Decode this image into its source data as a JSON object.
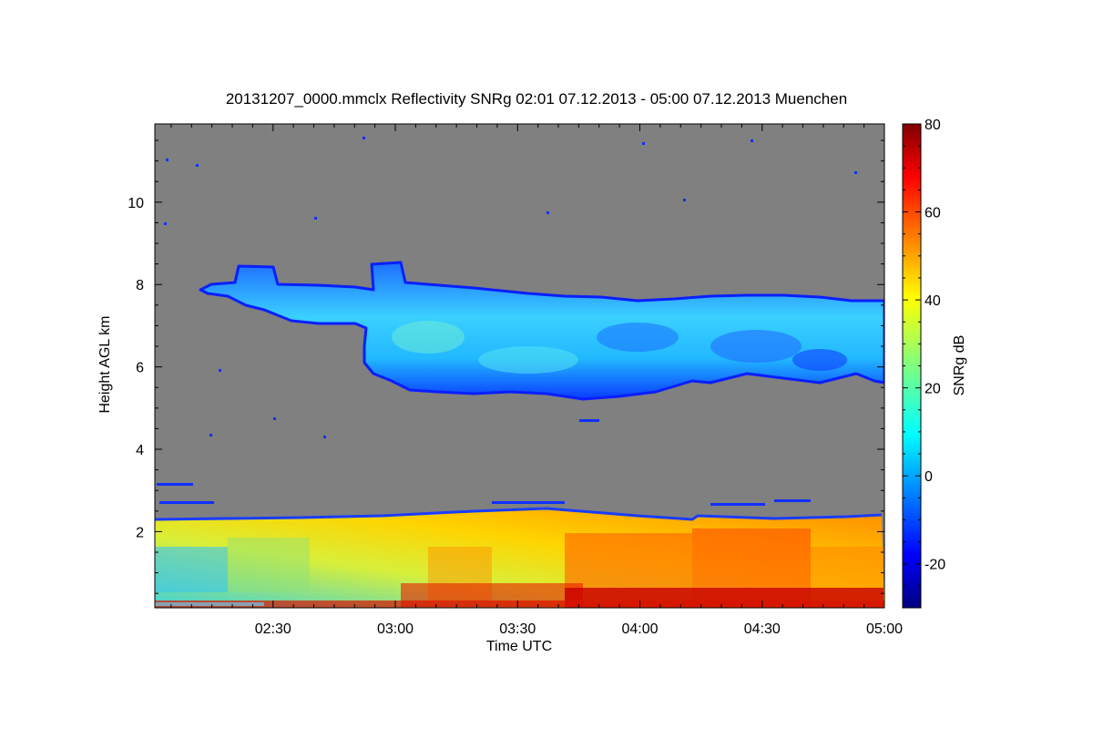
{
  "chart_data": {
    "type": "heatmap",
    "title": "20131207_0000.mmclx Reflectivity SNRg   02:01 07.12.2013 - 05:00 07.12.2013 Muenchen",
    "xlabel": "Time UTC",
    "ylabel": "Height AGL km",
    "xlim": [
      "02:01",
      "05:00"
    ],
    "ylim": [
      0.15,
      11.9
    ],
    "x_ticks": [
      "02:30",
      "03:00",
      "03:30",
      "04:00",
      "04:30",
      "05:00"
    ],
    "y_ticks": [
      2,
      4,
      6,
      8,
      10
    ],
    "colorbar": {
      "label": "SNRg dB",
      "range": [
        -30,
        80
      ],
      "ticks": [
        80,
        60,
        40,
        20,
        0,
        -20
      ],
      "colormap": "jet"
    },
    "background_color": "#808080",
    "features": [
      {
        "name": "boundary-layer echo",
        "height_km": [
          0.15,
          2.35
        ],
        "snr_db": [
          10,
          75
        ]
      },
      {
        "name": "mid-level cloud layer",
        "time": [
          "02:12",
          "05:00"
        ],
        "height_km": [
          5.2,
          8.6
        ],
        "snr_db": [
          -20,
          20
        ]
      },
      {
        "name": "near-surface strong echo",
        "time": [
          "03:00",
          "05:00"
        ],
        "height_km": [
          0.15,
          0.5
        ],
        "snr_db": [
          55,
          78
        ]
      }
    ]
  }
}
